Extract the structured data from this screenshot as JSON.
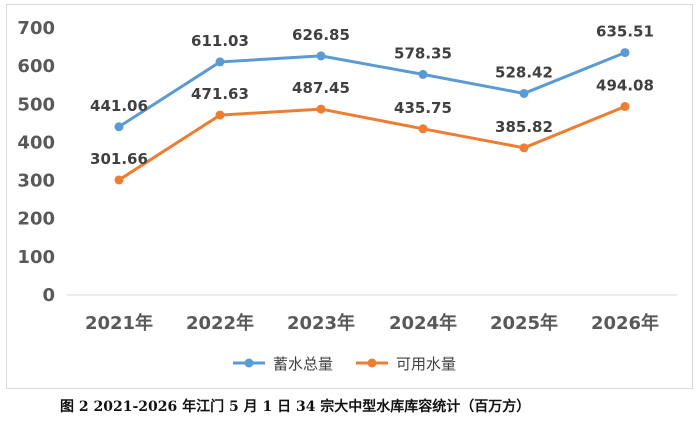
{
  "chart_data": {
    "type": "line",
    "categories": [
      "2021年",
      "2022年",
      "2023年",
      "2024年",
      "2025年",
      "2026年"
    ],
    "series": [
      {
        "name": "蓄水总量",
        "color": "#5b9bd5",
        "values": [
          441.06,
          611.03,
          626.85,
          578.35,
          528.42,
          635.51
        ],
        "labels": [
          "441.06",
          "611.03",
          "626.85",
          "578.35",
          "528.42",
          "635.51"
        ]
      },
      {
        "name": "可用水量",
        "color": "#ed7d31",
        "values": [
          301.66,
          471.63,
          487.45,
          435.75,
          385.82,
          494.08
        ],
        "labels": [
          "301.66",
          "471.63",
          "487.45",
          "435.75",
          "385.82",
          "494.08"
        ]
      }
    ],
    "ylim": [
      0,
      700
    ],
    "yticks": [
      "0",
      "100",
      "200",
      "300",
      "400",
      "500",
      "600",
      "700"
    ],
    "grid": false,
    "legend_position": "bottom",
    "title": "",
    "xlabel": "",
    "ylabel": ""
  },
  "caption": "图 2 2021-2026 年江门 5 月 1 日 34 宗大中型水库库容统计（百万方）"
}
